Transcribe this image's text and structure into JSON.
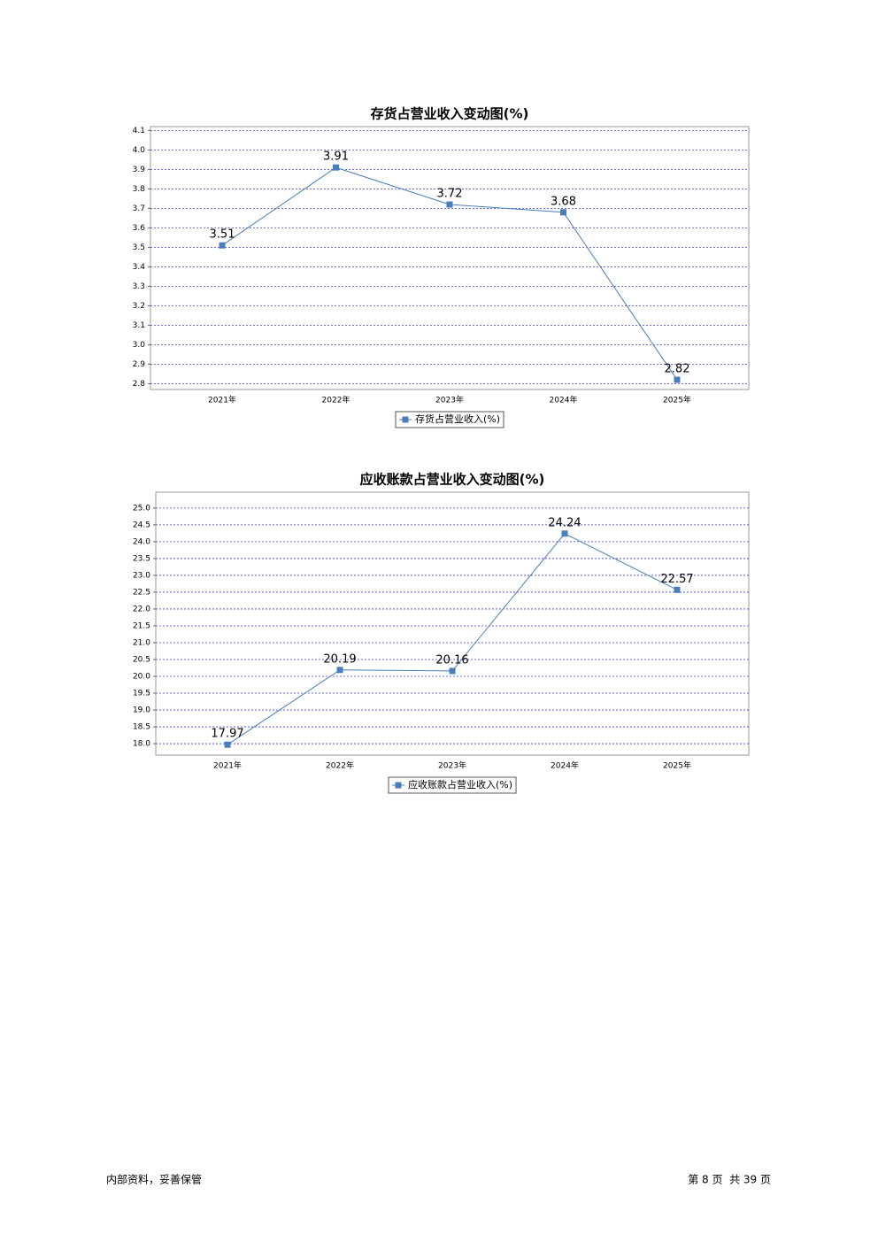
{
  "chart_data": [
    {
      "type": "line",
      "title": "存货占营业收入变动图(%)",
      "categories": [
        "2021年",
        "2022年",
        "2023年",
        "2024年",
        "2025年"
      ],
      "series": [
        {
          "name": "存货占营业收入(%)",
          "color": "#4a7ebb",
          "values": [
            3.51,
            3.91,
            3.72,
            3.68,
            2.82
          ]
        }
      ],
      "ylim": [
        2.77,
        4.12
      ],
      "yticks": [
        2.8,
        2.9,
        {
          "value": 3.0,
          "label": "3.0"
        },
        3.1,
        3.2,
        3.3,
        3.4,
        3.5,
        3.6,
        3.7,
        3.8,
        3.9,
        {
          "value": 4.0,
          "label": "4.0"
        },
        4.1
      ],
      "grid": true
    },
    {
      "type": "line",
      "title": "应收账款占营业收入变动图(%)",
      "categories": [
        "2021年",
        "2022年",
        "2023年",
        "2024年",
        "2025年"
      ],
      "series": [
        {
          "name": "应收账款占营业收入(%)",
          "color": "#4a7ebb",
          "values": [
            17.97,
            20.19,
            20.16,
            24.24,
            22.57
          ]
        }
      ],
      "ylim": [
        17.66,
        25.47
      ],
      "yticks": [
        {
          "value": 18.0,
          "label": "18.0"
        },
        18.5,
        {
          "value": 19.0,
          "label": "19.0"
        },
        19.5,
        {
          "value": 20.0,
          "label": "20.0"
        },
        20.5,
        {
          "value": 21.0,
          "label": "21.0"
        },
        21.5,
        {
          "value": 22.0,
          "label": "22.0"
        },
        22.5,
        {
          "value": 23.0,
          "label": "23.0"
        },
        23.5,
        {
          "value": 24.0,
          "label": "24.0"
        },
        24.5,
        {
          "value": 25.0,
          "label": "25.0"
        }
      ],
      "grid": true
    }
  ],
  "footer": {
    "left": "内部资料，妥善保管",
    "right": "第 8 页  共 39 页"
  }
}
